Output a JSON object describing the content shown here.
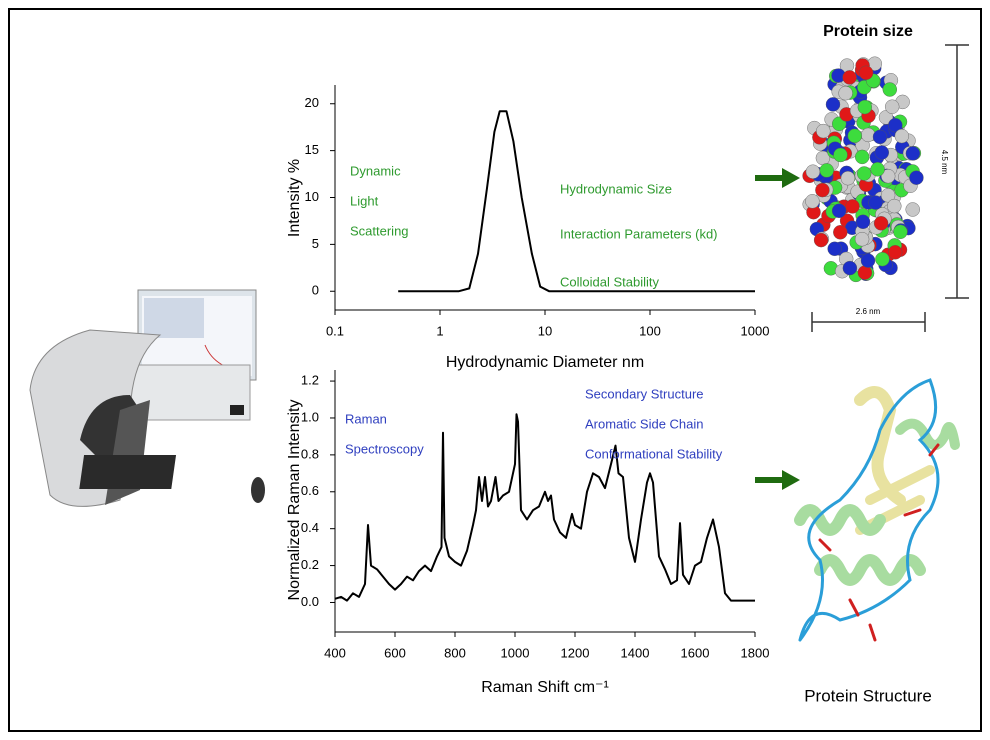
{
  "chart_data": [
    {
      "type": "line",
      "xscale": "log",
      "color": "#000000",
      "y_label": "Intensity %",
      "x_label": "Hydrodynamic Diameter  nm",
      "annotations": [
        "Dynamic",
        "Light",
        "Scattering",
        "Hydrodynamic Size",
        "Interaction Parameters (kd)",
        "Colloidal Stability"
      ],
      "annotation_color": "#2e9a2e",
      "x": [
        0.4,
        1.5,
        1.9,
        2.3,
        2.8,
        3.3,
        3.7,
        4.3,
        5,
        6,
        7.5,
        9,
        11,
        1000
      ],
      "values": [
        0,
        0,
        0.3,
        4,
        11,
        17,
        19.2,
        19.2,
        16,
        10,
        4,
        0.5,
        0,
        0
      ],
      "xlim": [
        0.1,
        1000
      ],
      "xticks": [
        0.1,
        1,
        10,
        100,
        1000
      ],
      "ylim": [
        -2,
        22
      ],
      "yticks": [
        0,
        5,
        10,
        15,
        20
      ]
    },
    {
      "type": "line",
      "xscale": "linear",
      "color": "#000000",
      "y_label": "Normalized Raman Intensity",
      "x_label": "Raman Shift cm⁻¹",
      "annotations": [
        "Raman",
        "Spectroscopy",
        "Secondary Structure",
        "Aromatic Side Chain",
        "Conformational Stability"
      ],
      "annotation_color": "#2f3fbf",
      "x": [
        400,
        420,
        440,
        460,
        480,
        500,
        510,
        520,
        540,
        560,
        580,
        600,
        620,
        640,
        660,
        680,
        700,
        720,
        740,
        755,
        760,
        765,
        780,
        800,
        820,
        840,
        850,
        860,
        870,
        880,
        890,
        900,
        910,
        920,
        935,
        945,
        960,
        980,
        1000,
        1005,
        1010,
        1020,
        1040,
        1060,
        1080,
        1100,
        1110,
        1120,
        1130,
        1150,
        1170,
        1190,
        1200,
        1220,
        1240,
        1260,
        1280,
        1300,
        1320,
        1335,
        1345,
        1360,
        1380,
        1400,
        1420,
        1440,
        1450,
        1460,
        1480,
        1500,
        1520,
        1540,
        1550,
        1560,
        1580,
        1600,
        1620,
        1640,
        1660,
        1680,
        1700,
        1720,
        1760,
        1800
      ],
      "values": [
        0.02,
        0.03,
        0.01,
        0.05,
        0.03,
        0.1,
        0.42,
        0.2,
        0.18,
        0.14,
        0.1,
        0.07,
        0.1,
        0.14,
        0.12,
        0.17,
        0.2,
        0.17,
        0.25,
        0.3,
        0.92,
        0.35,
        0.25,
        0.22,
        0.2,
        0.28,
        0.35,
        0.42,
        0.5,
        0.68,
        0.55,
        0.68,
        0.52,
        0.55,
        0.68,
        0.55,
        0.58,
        0.6,
        0.75,
        1.02,
        0.98,
        0.5,
        0.45,
        0.5,
        0.52,
        0.6,
        0.55,
        0.58,
        0.45,
        0.38,
        0.35,
        0.48,
        0.42,
        0.4,
        0.6,
        0.7,
        0.68,
        0.62,
        0.75,
        0.85,
        0.7,
        0.68,
        0.35,
        0.22,
        0.45,
        0.65,
        0.7,
        0.65,
        0.25,
        0.18,
        0.1,
        0.12,
        0.43,
        0.15,
        0.1,
        0.2,
        0.22,
        0.35,
        0.45,
        0.3,
        0.05,
        0.01,
        0.01,
        0.01
      ],
      "xlim": [
        400,
        1800
      ],
      "xticks": [
        400,
        600,
        800,
        1000,
        1200,
        1400,
        1600,
        1800
      ],
      "ylim": [
        -0.16,
        1.26
      ],
      "yticks": [
        {
          "value": 0,
          "label": "0.0"
        },
        0.2,
        0.4,
        0.6,
        0.8,
        {
          "value": 1,
          "label": "1.0"
        },
        1.2
      ]
    }
  ],
  "labels": {
    "protein_size": "Protein size",
    "height": "4.5 nm",
    "width": "2.6 nm",
    "protein_structure": "Protein Structure"
  }
}
